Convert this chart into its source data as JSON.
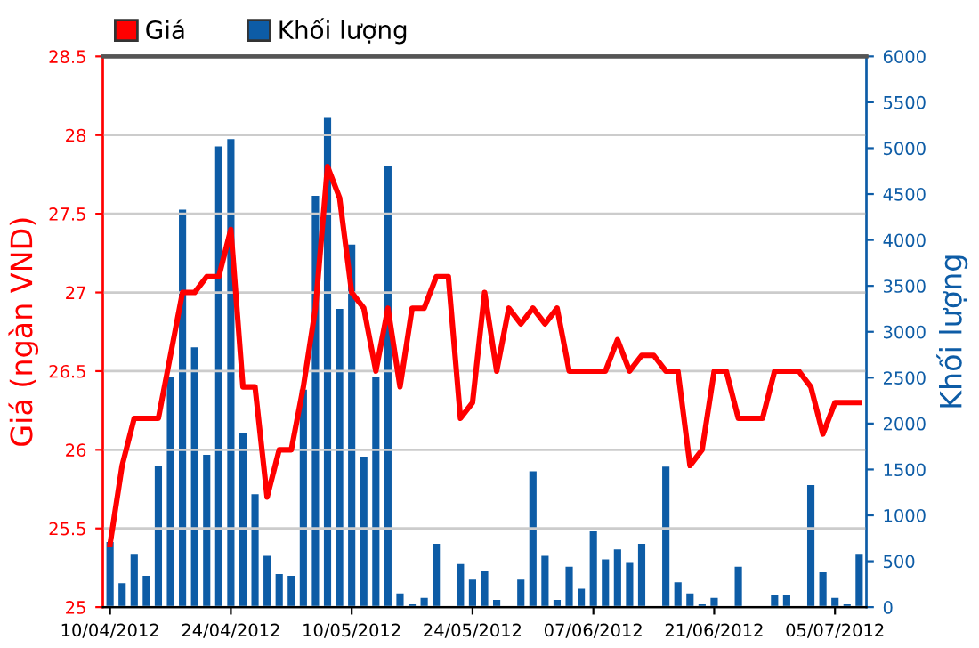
{
  "chart_data": {
    "type": "bar",
    "categories": [
      "10/04/2012",
      null,
      null,
      null,
      null,
      null,
      null,
      null,
      null,
      null,
      "24/04/2012",
      null,
      null,
      null,
      null,
      null,
      null,
      null,
      null,
      null,
      "10/05/2012",
      null,
      null,
      null,
      null,
      null,
      null,
      null,
      null,
      null,
      "24/05/2012",
      null,
      null,
      null,
      null,
      null,
      null,
      null,
      null,
      null,
      "07/06/2012",
      null,
      null,
      null,
      null,
      null,
      null,
      null,
      null,
      null,
      "21/06/2012",
      null,
      null,
      null,
      null,
      null,
      null,
      null,
      null,
      null,
      "05/07/2012",
      null,
      null
    ],
    "series": [
      {
        "name": "Giá",
        "type": "line",
        "axis": "y",
        "color": "#ff0000",
        "values": [
          25.4,
          25.9,
          26.2,
          26.2,
          26.2,
          26.6,
          27.0,
          27.0,
          27.1,
          27.1,
          27.4,
          26.4,
          26.4,
          25.7,
          26.0,
          26.0,
          26.4,
          26.9,
          27.8,
          27.6,
          27.0,
          26.9,
          26.5,
          26.9,
          26.4,
          26.9,
          26.9,
          27.1,
          27.1,
          26.2,
          26.3,
          27.0,
          26.5,
          26.9,
          26.8,
          26.9,
          26.8,
          26.9,
          26.5,
          26.5,
          26.5,
          26.5,
          26.7,
          26.5,
          26.6,
          26.6,
          26.5,
          26.5,
          25.9,
          26.0,
          26.5,
          26.5,
          26.2,
          26.2,
          26.2,
          26.5,
          26.5,
          26.5,
          26.4,
          26.1,
          26.3,
          26.3,
          26.3
        ]
      },
      {
        "name": "Khối lượng",
        "axis": "y2",
        "color": "#0d5ca6",
        "values": [
          710,
          260,
          580,
          340,
          1540,
          2510,
          4330,
          2830,
          1660,
          5020,
          5100,
          1900,
          1230,
          560,
          360,
          340,
          2370,
          4480,
          5330,
          3250,
          3950,
          1640,
          2510,
          4800,
          150,
          30,
          100,
          690,
          0,
          470,
          300,
          390,
          80,
          0,
          300,
          1480,
          560,
          80,
          440,
          200,
          830,
          520,
          630,
          490,
          690,
          0,
          1530,
          270,
          150,
          30,
          100,
          0,
          440,
          0,
          0,
          130,
          130,
          0,
          1330,
          380,
          100,
          30,
          580
        ]
      }
    ],
    "ylabel": "Giá (ngàn VND)",
    "y2label": "Khối lượng",
    "ylim": [
      25,
      28.5
    ],
    "yticks": [
      25,
      25.5,
      26,
      26.5,
      27,
      27.5,
      28,
      28.5
    ],
    "y2lim": [
      0,
      6000
    ],
    "y2ticks": [
      0,
      500,
      1000,
      1500,
      2000,
      2500,
      3000,
      3500,
      4000,
      4500,
      5000,
      5500,
      6000
    ],
    "grid": "y",
    "legend": "top left"
  }
}
